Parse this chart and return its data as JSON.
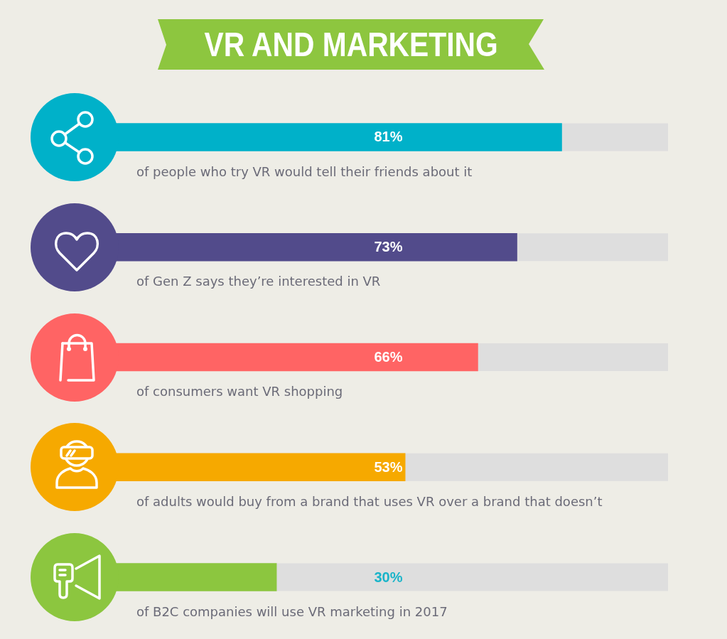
{
  "chart_data": {
    "type": "bar",
    "orientation": "horizontal",
    "title": "VR AND MARKETING",
    "categories": [
      "of people who try VR would tell their friends about it",
      "of Gen Z says they’re interested in VR",
      "of consumers want VR shopping",
      "of adults would buy from a brand that uses VR over a brand that doesn’t",
      "of B2C companies will use VR marketing in 2017"
    ],
    "values": [
      81,
      73,
      66,
      53,
      30
    ],
    "value_labels": [
      "81%",
      "73%",
      "66%",
      "53%",
      "30%"
    ],
    "colors": [
      "#00b1c9",
      "#524b8b",
      "#ff6464",
      "#f6a900",
      "#8cc63f"
    ],
    "xlim": [
      0,
      100
    ],
    "tick_labels": "y"
  }
}
